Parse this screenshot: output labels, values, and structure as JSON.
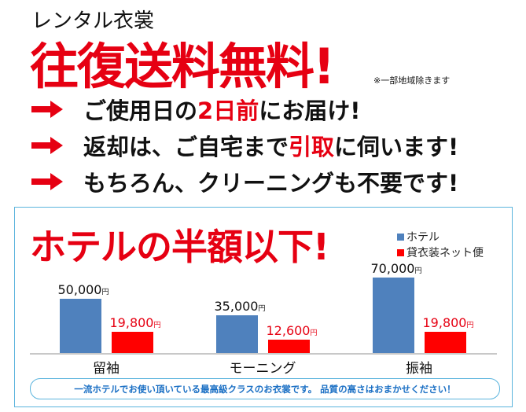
{
  "header": {
    "subtitle": "レンタル衣裳",
    "headline": "往復送料無料!",
    "note": "※一部地域除きます"
  },
  "features": [
    {
      "parts": [
        {
          "text": "ご使用日の",
          "hl": false
        },
        {
          "text": "2日前",
          "hl": true
        },
        {
          "text": "にお届け!",
          "hl": false
        }
      ]
    },
    {
      "parts": [
        {
          "text": "返却は、ご自宅まで",
          "hl": false
        },
        {
          "text": "引取",
          "hl": true
        },
        {
          "text": "に伺います!",
          "hl": false
        }
      ]
    },
    {
      "parts": [
        {
          "text": "もちろん、クリーニングも不要です!",
          "hl": false
        }
      ]
    }
  ],
  "footer_note": "一流ホテルでお使い頂いている最高級クラスのお衣裳です。 品質の高さはおまかせください！",
  "colors": {
    "accent_red": "#e60012",
    "hotel_blue": "#4f81bd",
    "rental_red": "#ff0000",
    "border_blue": "#5bb4dd",
    "footer_text": "#1a6fc4"
  },
  "icons": [
    "arrow-right-icon"
  ],
  "chart_data": {
    "type": "bar",
    "title": "ホテルの半額以下!",
    "categories": [
      "留袖",
      "モーニング",
      "振袖"
    ],
    "series": [
      {
        "name": "ホテル",
        "values": [
          50000,
          35000,
          70000
        ],
        "labels": [
          "50,000",
          "35,000",
          "70,000"
        ],
        "color": "#4f81bd"
      },
      {
        "name": "貸衣装ネット便",
        "values": [
          19800,
          12600,
          19800
        ],
        "labels": [
          "19,800",
          "12,600",
          "19,800"
        ],
        "color": "#ff0000"
      }
    ],
    "unit": "円",
    "ylim": [
      0,
      70000
    ],
    "grid": false,
    "legend": "top-right"
  }
}
